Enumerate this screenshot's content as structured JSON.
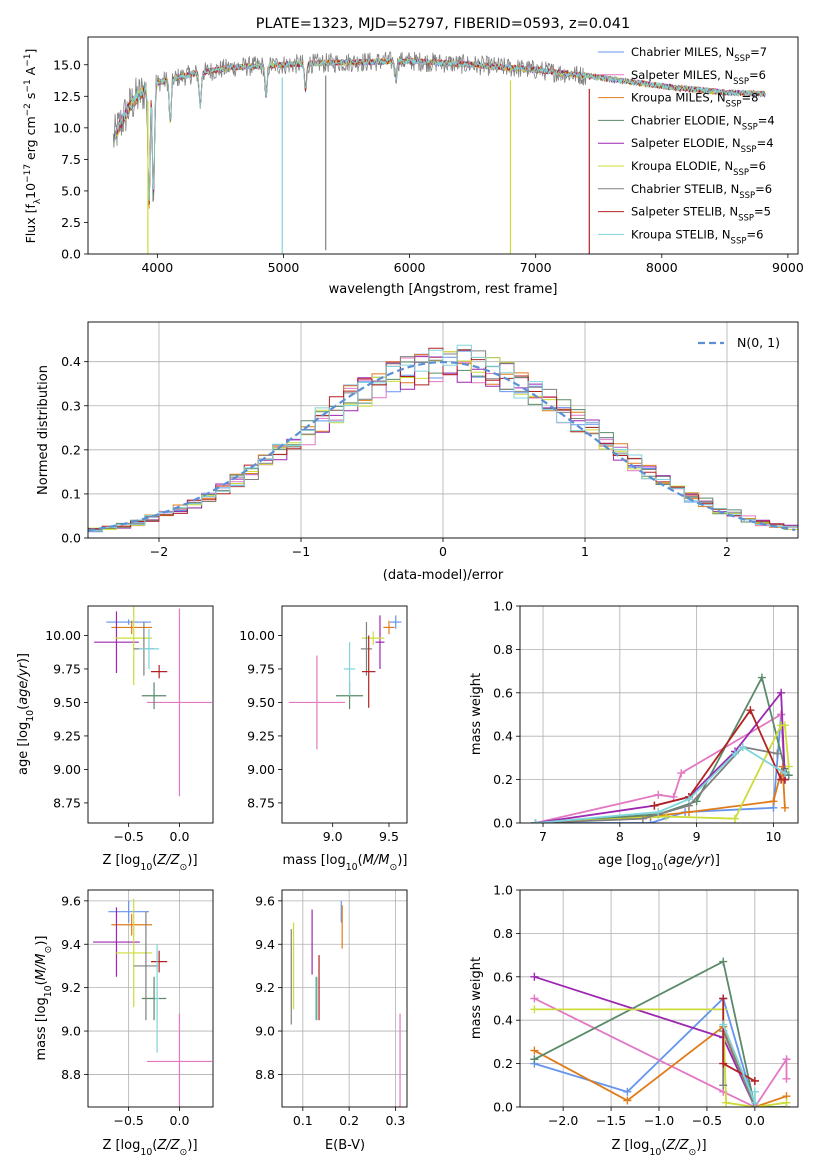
{
  "colors": {
    "c1": "#6495ed",
    "c2": "#e377c2",
    "c3": "#e07b1a",
    "c4": "#5a8a6a",
    "c5": "#9c27b0",
    "c6": "#cddc39",
    "c7": "#808080",
    "c8": "#b22222",
    "c9": "#80d4dc",
    "gauss": "#5b8fd6"
  },
  "chart_data": [
    {
      "type": "line",
      "title": "PLATE=1323, MJD=52797, FIBERID=0593, z=0.041",
      "xlabel": "wavelength [Angstrom, rest frame]",
      "ylabel": "Flux [fλ10⁻¹⁷ erg cm⁻² s⁻¹ A⁻¹]",
      "xlim": [
        3450,
        9080
      ],
      "ylim": [
        0,
        17.2
      ],
      "xticks": [
        4000,
        5000,
        6000,
        7000,
        8000,
        9000
      ],
      "yticks": [
        0.0,
        2.5,
        5.0,
        7.5,
        10.0,
        12.5,
        15.0
      ],
      "xtick_labels": [
        "4000",
        "5000",
        "6000",
        "7000",
        "8000",
        "9000"
      ],
      "ytick_labels": [
        "0.0",
        "2.5",
        "5.0",
        "7.5",
        "10.0",
        "12.5",
        "15.0"
      ],
      "legend_position": "top-right",
      "continuum": [
        [
          3650,
          9.0
        ],
        [
          3700,
          10.2
        ],
        [
          3800,
          12.0
        ],
        [
          3900,
          13.0
        ],
        [
          4000,
          13.6
        ],
        [
          4300,
          14.3
        ],
        [
          4600,
          14.8
        ],
        [
          5000,
          15.0
        ],
        [
          5500,
          15.2
        ],
        [
          6000,
          15.3
        ],
        [
          6500,
          15.0
        ],
        [
          7000,
          14.6
        ],
        [
          7500,
          14.0
        ],
        [
          8000,
          13.3
        ],
        [
          8500,
          12.8
        ],
        [
          8800,
          12.7
        ]
      ],
      "absorption_lines": [
        [
          3934,
          4.0
        ],
        [
          3969,
          5.0
        ],
        [
          4102,
          10.5
        ],
        [
          4340,
          11.8
        ],
        [
          4862,
          12.5
        ],
        [
          5175,
          13.0
        ],
        [
          5890,
          14.0
        ]
      ],
      "spikes": [
        [
          4990,
          0
        ],
        [
          5335,
          0.3
        ],
        [
          6800,
          0
        ],
        [
          3925,
          0
        ],
        [
          7425,
          0
        ]
      ],
      "series": [
        {
          "name": "Chabrier MILES, N",
          "sub": "SSP",
          "suffix": "=7",
          "color": "#6495ed"
        },
        {
          "name": "Salpeter MILES, N",
          "sub": "SSP",
          "suffix": "=6",
          "color": "#e377c2"
        },
        {
          "name": "Kroupa MILES, N",
          "sub": "SSP",
          "suffix": "=8",
          "color": "#e07b1a"
        },
        {
          "name": "Chabrier ELODIE, N",
          "sub": "SSP",
          "suffix": "=4",
          "color": "#5a8a6a"
        },
        {
          "name": "Salpeter ELODIE, N",
          "sub": "SSP",
          "suffix": "=4",
          "color": "#9c27b0"
        },
        {
          "name": "Kroupa ELODIE, N",
          "sub": "SSP",
          "suffix": "=6",
          "color": "#cddc39"
        },
        {
          "name": "Chabrier STELIB, N",
          "sub": "SSP",
          "suffix": "=6",
          "color": "#808080"
        },
        {
          "name": "Salpeter STELIB, N",
          "sub": "SSP",
          "suffix": "=5",
          "color": "#b22222"
        },
        {
          "name": "Kroupa STELIB, N",
          "sub": "SSP",
          "suffix": "=6",
          "color": "#80d4dc"
        }
      ]
    },
    {
      "type": "area",
      "xlabel": "(data-model)/error",
      "ylabel": "Normed distribution",
      "xlim": [
        -2.5,
        2.5
      ],
      "ylim": [
        0,
        0.49
      ],
      "xticks": [
        -2,
        -1,
        0,
        1,
        2
      ],
      "yticks": [
        0.0,
        0.1,
        0.2,
        0.3,
        0.4
      ],
      "xtick_labels": [
        "−2",
        "−1",
        "0",
        "1",
        "2"
      ],
      "ytick_labels": [
        "0.0",
        "0.1",
        "0.2",
        "0.3",
        "0.4"
      ],
      "grid": true,
      "legend": "N(0, 1)",
      "bin_width": 0.1,
      "bin_start": -2.5
    },
    {
      "type": "scatter",
      "xlabel": "Z [log10(Z/Z⊙)]",
      "ylabel": "age  [log10(age/yr)]",
      "xlim": [
        -0.9,
        0.33
      ],
      "ylim": [
        8.6,
        10.22
      ],
      "xticks": [
        -0.5,
        0.0
      ],
      "yticks": [
        8.75,
        9.0,
        9.25,
        9.5,
        9.75,
        10.0
      ],
      "xtick_labels": [
        "−0.5",
        "0.0"
      ],
      "ytick_labels": [
        "8.75",
        "9.00",
        "9.25",
        "9.50",
        "9.75",
        "10.00"
      ],
      "points": [
        {
          "color": "#6495ed",
          "x": -0.5,
          "y": 10.1,
          "xerr": 0.22,
          "yerr": 0.02
        },
        {
          "color": "#e377c2",
          "x": 0.0,
          "y": 9.5,
          "xerr": 0.32,
          "yerr": 0.7
        },
        {
          "color": "#e07b1a",
          "x": -0.47,
          "y": 10.06,
          "xerr": 0.2,
          "yerr": 0.05
        },
        {
          "color": "#5a8a6a",
          "x": -0.25,
          "y": 9.55,
          "xerr": 0.12,
          "yerr": 0.1
        },
        {
          "color": "#9c27b0",
          "x": -0.62,
          "y": 9.95,
          "xerr": 0.22,
          "yerr": 0.23
        },
        {
          "color": "#cddc39",
          "x": -0.45,
          "y": 9.98,
          "xerr": 0.18,
          "yerr": 0.35
        },
        {
          "color": "#808080",
          "x": -0.35,
          "y": 9.9,
          "xerr": 0.1,
          "yerr": 0.2
        },
        {
          "color": "#b22222",
          "x": -0.2,
          "y": 9.73,
          "xerr": 0.08,
          "yerr": 0.05
        },
        {
          "color": "#80d4dc",
          "x": -0.3,
          "y": 9.9,
          "xerr": 0.1,
          "yerr": 0.15
        }
      ]
    },
    {
      "type": "scatter",
      "xlabel": "mass [log10(M/M⊙)]",
      "ylabel": "",
      "xlim": [
        8.55,
        9.66
      ],
      "ylim": [
        8.6,
        10.22
      ],
      "xticks": [
        9.0,
        9.5
      ],
      "yticks": [
        8.75,
        9.0,
        9.25,
        9.5,
        9.75,
        10.0
      ],
      "xtick_labels": [
        "9.0",
        "9.5"
      ],
      "ytick_labels": [
        "8.75",
        "9.00",
        "9.25",
        "9.50",
        "9.75",
        "10.00"
      ],
      "points": [
        {
          "color": "#6495ed",
          "x": 9.56,
          "y": 10.1,
          "xerr": 0.05,
          "yerr": 0.05
        },
        {
          "color": "#e377c2",
          "x": 8.86,
          "y": 9.5,
          "xerr": 0.25,
          "yerr": 0.35
        },
        {
          "color": "#e07b1a",
          "x": 9.5,
          "y": 10.06,
          "xerr": 0.05,
          "yerr": 0.05
        },
        {
          "color": "#5a8a6a",
          "x": 9.15,
          "y": 9.55,
          "xerr": 0.12,
          "yerr": 0.1
        },
        {
          "color": "#9c27b0",
          "x": 9.42,
          "y": 9.95,
          "xerr": 0.04,
          "yerr": 0.2
        },
        {
          "color": "#cddc39",
          "x": 9.36,
          "y": 9.98,
          "xerr": 0.1,
          "yerr": 0.05
        },
        {
          "color": "#808080",
          "x": 9.3,
          "y": 9.9,
          "xerr": 0.05,
          "yerr": 0.2
        },
        {
          "color": "#b22222",
          "x": 9.32,
          "y": 9.73,
          "xerr": 0.06,
          "yerr": 0.27
        },
        {
          "color": "#80d4dc",
          "x": 9.15,
          "y": 9.75,
          "xerr": 0.05,
          "yerr": 0.2
        }
      ]
    },
    {
      "type": "line",
      "xlabel": "age  [log10(age/yr)]",
      "ylabel": "mass weight",
      "xlim": [
        6.7,
        10.32
      ],
      "ylim": [
        0,
        1.0
      ],
      "xticks": [
        7,
        8,
        9,
        10
      ],
      "yticks": [
        0.0,
        0.2,
        0.4,
        0.6,
        0.8,
        1.0
      ],
      "xtick_labels": [
        "7",
        "8",
        "9",
        "10"
      ],
      "ytick_labels": [
        "0.0",
        "0.2",
        "0.4",
        "0.6",
        "0.8",
        "1.0"
      ],
      "grid": true,
      "series": [
        {
          "color": "#6495ed",
          "x": [
            6.9,
            8.4,
            8.85,
            10.0,
            10.1,
            10.15
          ],
          "y": [
            0.0,
            0.0,
            0.05,
            0.07,
            0.5,
            0.2
          ]
        },
        {
          "color": "#e377c2",
          "x": [
            6.9,
            8.5,
            8.7,
            8.8,
            10.1,
            10.15
          ],
          "y": [
            0.0,
            0.13,
            0.12,
            0.23,
            0.5,
            0.22
          ]
        },
        {
          "color": "#e07b1a",
          "x": [
            6.9,
            8.4,
            8.9,
            10.0,
            10.12,
            10.15
          ],
          "y": [
            0.0,
            0.03,
            0.05,
            0.1,
            0.26,
            0.07
          ]
        },
        {
          "color": "#5a8a6a",
          "x": [
            6.9,
            8.5,
            9.0,
            9.85,
            10.15,
            10.2
          ],
          "y": [
            0.0,
            0.04,
            0.1,
            0.67,
            0.25,
            0.22
          ]
        },
        {
          "color": "#9c27b0",
          "x": [
            6.9,
            8.45,
            8.9,
            9.5,
            10.1,
            10.15
          ],
          "y": [
            0.0,
            0.08,
            0.12,
            0.33,
            0.6,
            0.2
          ]
        },
        {
          "color": "#cddc39",
          "x": [
            6.9,
            8.6,
            9.5,
            10.1,
            10.15,
            10.2
          ],
          "y": [
            0.0,
            0.03,
            0.02,
            0.45,
            0.45,
            0.26
          ]
        },
        {
          "color": "#808080",
          "x": [
            6.9,
            8.3,
            8.9,
            9.6,
            10.05
          ],
          "y": [
            0.0,
            0.02,
            0.08,
            0.35,
            0.32
          ]
        },
        {
          "color": "#b22222",
          "x": [
            8.45,
            8.9,
            9.7,
            10.1,
            10.15
          ],
          "y": [
            0.08,
            0.12,
            0.52,
            0.2,
            0.2
          ]
        },
        {
          "color": "#80d4dc",
          "x": [
            6.9,
            8.5,
            8.9,
            9.5,
            9.6,
            10.15
          ],
          "y": [
            0.0,
            0.05,
            0.11,
            0.32,
            0.35,
            0.23
          ]
        }
      ]
    },
    {
      "type": "scatter",
      "xlabel": "Z [log10(Z/Z⊙)]",
      "ylabel": "mass [log10(M/M⊙)]",
      "xlim": [
        -0.9,
        0.33
      ],
      "ylim": [
        8.65,
        9.65
      ],
      "xticks": [
        -0.5,
        0.0
      ],
      "yticks": [
        8.8,
        9.0,
        9.2,
        9.4,
        9.6
      ],
      "xtick_labels": [
        "−0.5",
        "0.0"
      ],
      "ytick_labels": [
        "8.8",
        "9.0",
        "9.2",
        "9.4",
        "9.6"
      ],
      "grid": true,
      "points": [
        {
          "color": "#6495ed",
          "x": -0.5,
          "y": 9.55,
          "xerr": 0.2,
          "yerr": 0.05
        },
        {
          "color": "#e377c2",
          "x": 0.0,
          "y": 8.86,
          "xerr": 0.32,
          "yerr": 0.22
        },
        {
          "color": "#e07b1a",
          "x": -0.47,
          "y": 9.49,
          "xerr": 0.2,
          "yerr": 0.05
        },
        {
          "color": "#5a8a6a",
          "x": -0.25,
          "y": 9.15,
          "xerr": 0.12,
          "yerr": 0.1
        },
        {
          "color": "#9c27b0",
          "x": -0.62,
          "y": 9.41,
          "xerr": 0.23,
          "yerr": 0.16
        },
        {
          "color": "#cddc39",
          "x": -0.45,
          "y": 9.36,
          "xerr": 0.18,
          "yerr": 0.25
        },
        {
          "color": "#808080",
          "x": -0.33,
          "y": 9.3,
          "xerr": 0.12,
          "yerr": 0.25
        },
        {
          "color": "#b22222",
          "x": -0.2,
          "y": 9.32,
          "xerr": 0.08,
          "yerr": 0.05
        },
        {
          "color": "#80d4dc",
          "x": -0.22,
          "y": 9.15,
          "xerr": 0.02,
          "yerr": 0.25
        }
      ]
    },
    {
      "type": "scatter",
      "xlabel": "E(B-V)",
      "ylabel": "",
      "xlim": [
        0.055,
        0.325
      ],
      "ylim": [
        8.65,
        9.65
      ],
      "xticks": [
        0.1,
        0.2,
        0.3
      ],
      "yticks": [
        8.8,
        9.0,
        9.2,
        9.4,
        9.6
      ],
      "xtick_labels": [
        "0.1",
        "0.2",
        "0.3"
      ],
      "ytick_labels": [
        "8.8",
        "9.0",
        "9.2",
        "9.4",
        "9.6"
      ],
      "grid": true,
      "points": [
        {
          "color": "#6495ed",
          "x": 0.183,
          "y": 9.55,
          "xerr": 0.0,
          "yerr": 0.05
        },
        {
          "color": "#e377c2",
          "x": 0.31,
          "y": 8.86,
          "xerr": 0.0,
          "yerr": 0.22
        },
        {
          "color": "#e07b1a",
          "x": 0.185,
          "y": 9.48,
          "xerr": 0.0,
          "yerr": 0.1
        },
        {
          "color": "#5a8a6a",
          "x": 0.13,
          "y": 9.15,
          "xerr": 0.0,
          "yerr": 0.1
        },
        {
          "color": "#9c27b0",
          "x": 0.12,
          "y": 9.41,
          "xerr": 0.0,
          "yerr": 0.15
        },
        {
          "color": "#cddc39",
          "x": 0.08,
          "y": 9.3,
          "xerr": 0.0,
          "yerr": 0.2
        },
        {
          "color": "#808080",
          "x": 0.075,
          "y": 9.25,
          "xerr": 0.0,
          "yerr": 0.22
        },
        {
          "color": "#b22222",
          "x": 0.135,
          "y": 9.2,
          "xerr": 0.0,
          "yerr": 0.15
        },
        {
          "color": "#80d4dc",
          "x": 0.128,
          "y": 9.15,
          "xerr": 0.0,
          "yerr": 0.1
        }
      ]
    },
    {
      "type": "line",
      "xlabel": "Z [log10(Z/Z⊙)]",
      "ylabel": "mass weight",
      "xlim": [
        -2.45,
        0.45
      ],
      "ylim": [
        0,
        1.0
      ],
      "xticks": [
        -2.0,
        -1.5,
        -1.0,
        -0.5,
        0.0
      ],
      "yticks": [
        0.0,
        0.2,
        0.4,
        0.6,
        0.8,
        1.0
      ],
      "xtick_labels": [
        "−2.0",
        "−1.5",
        "−1.0",
        "−0.5",
        "0.0"
      ],
      "ytick_labels": [
        "0.0",
        "0.2",
        "0.4",
        "0.6",
        "0.8",
        "1.0"
      ],
      "grid": true,
      "series": [
        {
          "color": "#6495ed",
          "x": [
            -2.3,
            -1.33,
            -0.33,
            0.0
          ],
          "y": [
            0.2,
            0.07,
            0.5,
            0.0
          ]
        },
        {
          "color": "#e377c2",
          "x": [
            -2.3,
            -0.33,
            0.0,
            0.33,
            0.33
          ],
          "y": [
            0.5,
            0.07,
            0.0,
            0.22,
            0.13
          ]
        },
        {
          "color": "#e07b1a",
          "x": [
            -2.3,
            -1.33,
            -0.33,
            0.0,
            0.33
          ],
          "y": [
            0.26,
            0.03,
            0.37,
            0.0,
            0.05
          ]
        },
        {
          "color": "#5a8a6a",
          "x": [
            -2.3,
            -0.33,
            0.0,
            0.33
          ],
          "y": [
            0.22,
            0.67,
            0.0,
            0.0
          ]
        },
        {
          "color": "#9c27b0",
          "x": [
            -2.3,
            -0.33,
            0.0
          ],
          "y": [
            0.6,
            0.32,
            0.0
          ]
        },
        {
          "color": "#cddc39",
          "x": [
            -2.3,
            -0.33,
            -0.3,
            0.0,
            0.33
          ],
          "y": [
            0.45,
            0.45,
            0.02,
            0.0,
            0.02
          ]
        },
        {
          "color": "#808080",
          "x": [
            -0.33,
            -0.33,
            0.0
          ],
          "y": [
            0.1,
            0.35,
            0.0
          ]
        },
        {
          "color": "#b22222",
          "x": [
            -0.33,
            -0.33,
            0.0,
            0.0
          ],
          "y": [
            0.5,
            0.2,
            0.12,
            0.12
          ]
        },
        {
          "color": "#80d4dc",
          "x": [
            -0.33,
            0.0,
            0.0
          ],
          "y": [
            0.38,
            0.02,
            0.07
          ]
        }
      ]
    }
  ]
}
